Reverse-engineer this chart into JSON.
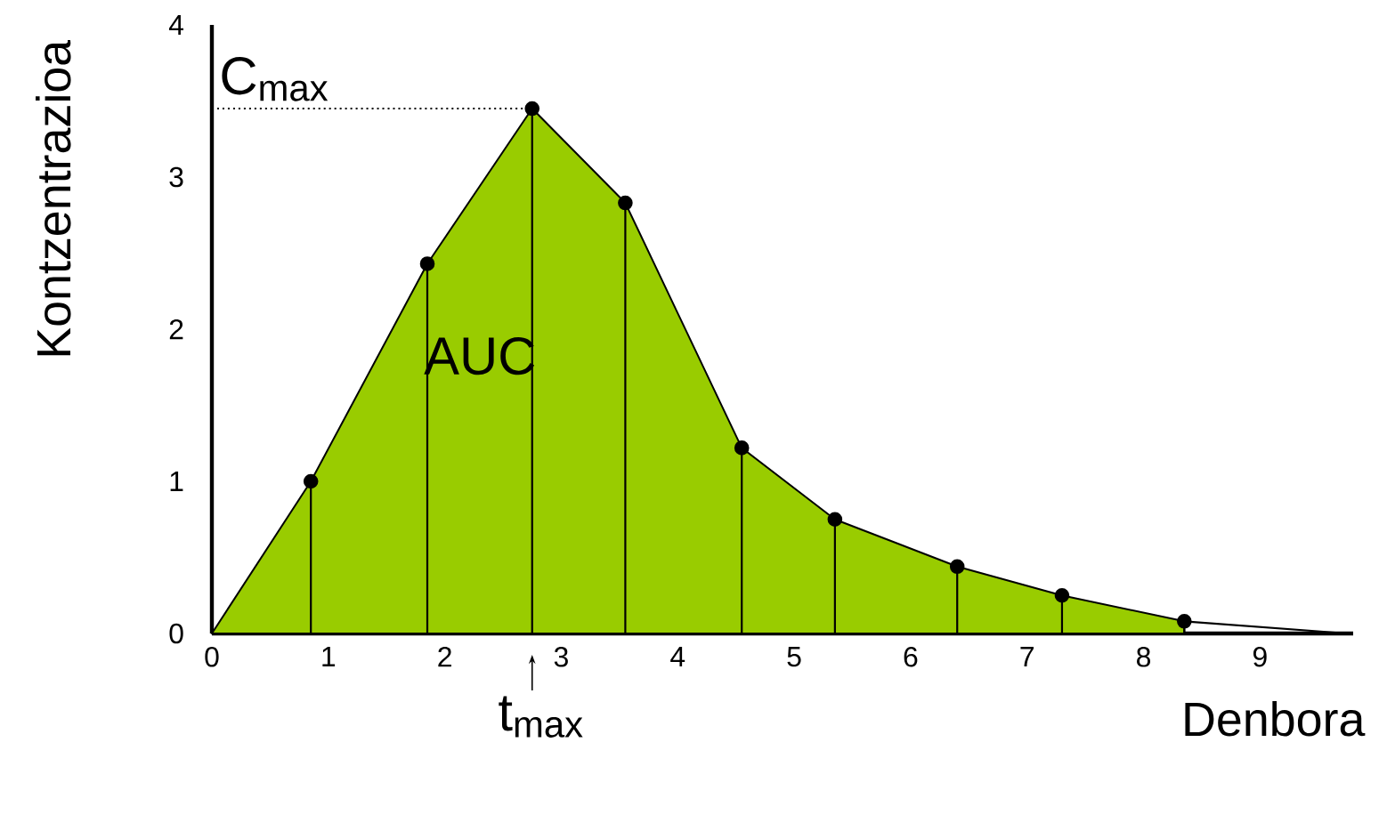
{
  "chart_data": {
    "type": "area",
    "xlabel": "Denbora",
    "ylabel": "Kontzentrazioa",
    "xlim": [
      0,
      9.8
    ],
    "ylim": [
      0,
      4
    ],
    "xticks": [
      0,
      1,
      2,
      3,
      4,
      5,
      6,
      7,
      8,
      9
    ],
    "yticks": [
      0,
      1,
      2,
      3,
      4
    ],
    "annotations": [
      "AUC",
      {
        "text": "t$_{max}$",
        "x": 2.75,
        "y": 0
      }
    ],
    "ref_lines": [
      {
        "axis": "y",
        "value": 3.45,
        "label": "C$_{max}$",
        "line_style": "dotted",
        "color": "#000000"
      }
    ],
    "series": [
      {
        "type": "area",
        "color": "#99cc00",
        "marker": "none",
        "x": [
          0,
          0.85,
          1.85,
          2.75,
          3.55,
          4.55,
          5.35,
          6.4,
          7.3,
          8.35
        ],
        "values": [
          0,
          1.0,
          2.43,
          3.45,
          2.83,
          1.22,
          0.75,
          0.44,
          0.25,
          0.08
        ]
      },
      {
        "type": "lollipop",
        "color": "#000000",
        "marker": "circle",
        "x": [
          0.85,
          1.85,
          2.75,
          3.55,
          4.55,
          5.35,
          6.4,
          7.3,
          8.35
        ],
        "values": [
          1.0,
          2.43,
          3.45,
          2.83,
          1.22,
          0.75,
          0.44,
          0.25,
          0.08
        ]
      },
      {
        "type": "line",
        "color": "#000000",
        "marker": "none",
        "x": [
          8.35,
          9.75
        ],
        "values": [
          0.08,
          0
        ]
      }
    ]
  }
}
